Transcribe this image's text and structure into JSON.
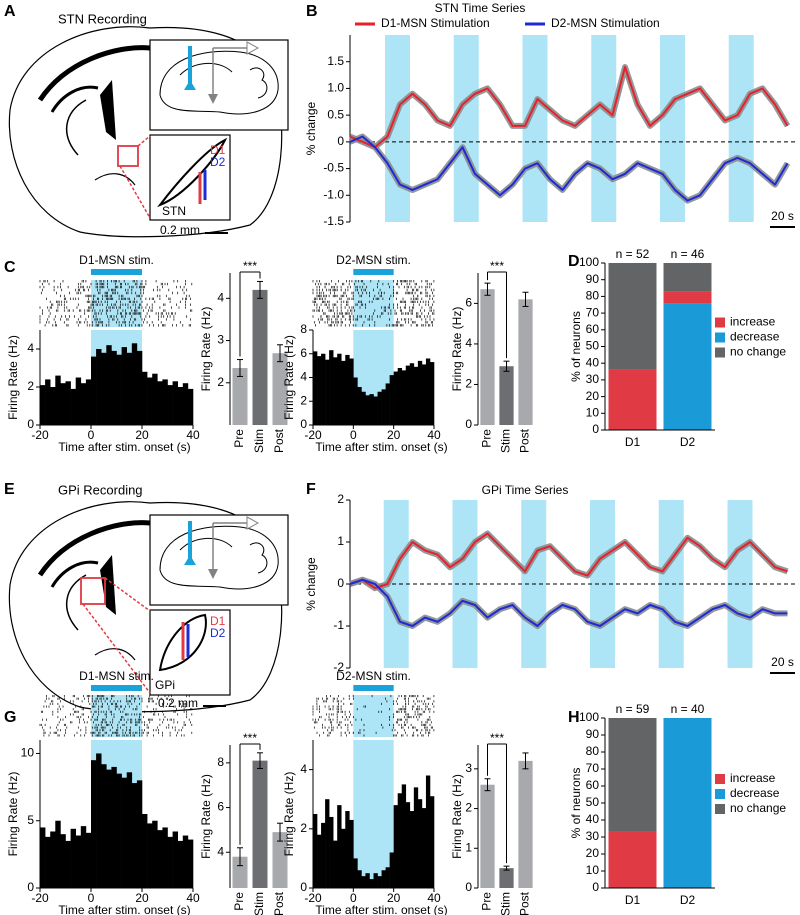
{
  "panel_labels": [
    "A",
    "B",
    "C",
    "D",
    "E",
    "F",
    "G",
    "H"
  ],
  "diagrams": [
    {
      "title": "STN Recording",
      "d1": "D1",
      "d2": "D2",
      "region": "STN",
      "scale": "0.2 mm"
    },
    {
      "title": "GPi Recording",
      "d1": "D1",
      "d2": "D2",
      "region": "GPi",
      "scale": "0.2 mm"
    }
  ],
  "chart_data": [
    {
      "type": "line",
      "title": "STN Time Series",
      "ylabel": "% change",
      "legend": true,
      "zero_line": true,
      "band_color": "#aee5f6",
      "stim_periods": [
        [
          28,
          48
        ],
        [
          83,
          103
        ],
        [
          138,
          158
        ],
        [
          193,
          213
        ],
        [
          248,
          268
        ],
        [
          303,
          323
        ]
      ],
      "x": [
        0,
        10,
        20,
        30,
        40,
        50,
        60,
        70,
        80,
        90,
        100,
        110,
        120,
        130,
        140,
        150,
        160,
        170,
        180,
        190,
        200,
        210,
        220,
        230,
        240,
        250,
        260,
        270,
        280,
        290,
        300,
        310,
        320,
        330,
        340,
        350
      ],
      "series": [
        {
          "name": "D1-MSN Stimulation",
          "color": "#e8202a",
          "values": [
            0.1,
            0.0,
            -0.1,
            0.1,
            0.7,
            0.9,
            0.7,
            0.4,
            0.3,
            0.7,
            0.9,
            1.0,
            0.7,
            0.3,
            0.3,
            0.8,
            0.6,
            0.4,
            0.3,
            0.5,
            0.7,
            0.5,
            1.4,
            0.7,
            0.3,
            0.5,
            0.8,
            0.9,
            1.0,
            0.7,
            0.4,
            0.5,
            0.9,
            1.0,
            0.7,
            0.3
          ]
        },
        {
          "name": "D2-MSN Stimulation",
          "color": "#1c2bd6",
          "values": [
            0.0,
            0.1,
            -0.1,
            -0.4,
            -0.8,
            -0.9,
            -0.8,
            -0.7,
            -0.4,
            -0.1,
            -0.6,
            -0.8,
            -1.0,
            -0.8,
            -0.5,
            -0.4,
            -0.7,
            -0.9,
            -0.6,
            -0.4,
            -0.5,
            -0.7,
            -0.6,
            -0.4,
            -0.5,
            -0.6,
            -0.9,
            -1.1,
            -1.0,
            -0.7,
            -0.4,
            -0.3,
            -0.4,
            -0.6,
            -0.8,
            -0.4
          ]
        }
      ],
      "xlim": [
        0,
        356
      ],
      "ylim": [
        -1.5,
        2
      ],
      "yticks": [
        -1.5,
        {
          "value": -1,
          "label": "-1.0"
        },
        -0.5,
        0,
        0.5,
        {
          "value": 1,
          "label": "1.0"
        },
        1.5
      ],
      "scale_bar": {
        "value": 20,
        "label": "20 s"
      }
    },
    {
      "type": "histogram",
      "title": "D1-MSN stim.",
      "xlabel": "Time after stim. onset (s)",
      "ylabel": "Firing Rate (Hz)",
      "color": "#000000",
      "stim_color": "#1aa3db",
      "shade_color": "#aee5f6",
      "stim_window": [
        0,
        20
      ],
      "bins": [
        -20,
        -18,
        -16,
        -14,
        -12,
        -10,
        -8,
        -6,
        -4,
        -2,
        0,
        2,
        4,
        6,
        8,
        10,
        12,
        14,
        16,
        18,
        20,
        22,
        24,
        26,
        28,
        30,
        32,
        34,
        36,
        38,
        40
      ],
      "values": [
        2.1,
        2.4,
        2.0,
        2.6,
        2.2,
        2.3,
        1.9,
        2.5,
        2.2,
        2.4,
        3.6,
        4.0,
        3.8,
        4.2,
        3.9,
        3.7,
        4.1,
        3.8,
        4.3,
        3.9,
        2.8,
        2.5,
        2.7,
        2.3,
        2.4,
        2.1,
        2.3,
        2.0,
        2.2,
        1.9
      ],
      "xlim": [
        -20,
        40
      ],
      "xticks": [
        -20,
        0,
        20,
        40
      ],
      "ylim": [
        0,
        5
      ],
      "yticks": [
        0,
        2,
        4
      ]
    },
    {
      "type": "bar",
      "ylabel": "Firing Rate (Hz)",
      "categories": [
        "Pre",
        "Stim",
        "Post"
      ],
      "values": [
        2.35,
        4.2,
        2.7
      ],
      "errors": [
        0.2,
        0.2,
        0.2
      ],
      "colors": [
        "#a7a9ac",
        "#6d6e71",
        "#a7a9ac"
      ],
      "ylim": [
        1,
        4.6
      ],
      "yticks": [
        2,
        3,
        4
      ],
      "annotation": "***"
    },
    {
      "type": "histogram",
      "title": "D2-MSN stim.",
      "xlabel": "Time after stim. onset (s)",
      "ylabel": "Firing Rate (Hz)",
      "color": "#000000",
      "stim_color": "#1aa3db",
      "shade_color": "#aee5f6",
      "stim_window": [
        0,
        20
      ],
      "bins": [
        -20,
        -18,
        -16,
        -14,
        -12,
        -10,
        -8,
        -6,
        -4,
        -2,
        0,
        2,
        4,
        6,
        8,
        10,
        12,
        14,
        16,
        18,
        20,
        22,
        24,
        26,
        28,
        30,
        32,
        34,
        36,
        38,
        40
      ],
      "values": [
        6.2,
        5.8,
        6.0,
        5.5,
        6.3,
        5.7,
        6.0,
        5.4,
        5.9,
        5.6,
        4.0,
        3.2,
        2.8,
        2.5,
        2.6,
        2.4,
        2.8,
        3.0,
        3.5,
        4.2,
        4.5,
        4.8,
        4.6,
        5.0,
        5.2,
        4.9,
        5.4,
        5.1,
        5.6,
        5.3
      ],
      "xlim": [
        -20,
        40
      ],
      "xticks": [
        -20,
        0,
        20,
        40
      ],
      "ylim": [
        0,
        8
      ],
      "yticks": [
        0,
        2,
        4,
        6,
        8
      ]
    },
    {
      "type": "bar",
      "ylabel": "Firing Rate (Hz)",
      "categories": [
        "Pre",
        "Stim",
        "Post"
      ],
      "values": [
        6.7,
        2.9,
        6.2
      ],
      "errors": [
        0.3,
        0.25,
        0.35
      ],
      "colors": [
        "#a7a9ac",
        "#6d6e71",
        "#a7a9ac"
      ],
      "ylim": [
        0,
        7.5
      ],
      "yticks": [
        0,
        2,
        4,
        6
      ],
      "annotation": "***"
    },
    {
      "type": "stacked_bar",
      "ylabel": "% of neurons",
      "categories": [
        "D1",
        "D2"
      ],
      "annotations": [
        "n = 52",
        "n = 46"
      ],
      "series": [
        {
          "name": "increase",
          "color": "#e03a44",
          "values": [
            36,
            7
          ]
        },
        {
          "name": "decrease",
          "color": "#1a9ad7",
          "values": [
            0,
            76
          ]
        },
        {
          "name": "no change",
          "color": "#636466",
          "values": [
            64,
            17
          ]
        }
      ],
      "ylim": [
        0,
        100
      ],
      "yticks": [
        0,
        10,
        20,
        30,
        40,
        50,
        60,
        70,
        80,
        90,
        100
      ]
    },
    {
      "type": "line",
      "title": "GPi Time Series",
      "ylabel": "% change",
      "legend": false,
      "zero_line": true,
      "band_color": "#aee5f6",
      "stim_periods": [
        [
          27,
          47
        ],
        [
          82,
          102
        ],
        [
          137,
          157
        ],
        [
          192,
          212
        ],
        [
          247,
          267
        ],
        [
          302,
          322
        ]
      ],
      "x": [
        0,
        10,
        20,
        30,
        40,
        50,
        60,
        70,
        80,
        90,
        100,
        110,
        120,
        130,
        140,
        150,
        160,
        170,
        180,
        190,
        200,
        210,
        220,
        230,
        240,
        250,
        260,
        270,
        280,
        290,
        300,
        310,
        320,
        330,
        340,
        350
      ],
      "series": [
        {
          "color": "#e8202a",
          "values": [
            0.0,
            0.1,
            -0.1,
            0.0,
            0.6,
            1.0,
            0.8,
            0.7,
            0.4,
            0.6,
            1.0,
            1.2,
            0.9,
            0.6,
            0.3,
            0.8,
            0.9,
            0.6,
            0.3,
            0.2,
            0.6,
            0.8,
            1.0,
            0.7,
            0.4,
            0.3,
            0.7,
            1.1,
            0.9,
            0.6,
            0.4,
            0.8,
            1.0,
            0.7,
            0.4,
            0.3
          ]
        },
        {
          "color": "#1c2bd6",
          "values": [
            0.0,
            0.1,
            0.0,
            -0.3,
            -0.9,
            -1.0,
            -0.8,
            -0.9,
            -0.7,
            -0.4,
            -0.5,
            -0.8,
            -0.6,
            -0.5,
            -0.8,
            -1.0,
            -0.7,
            -0.5,
            -0.6,
            -0.9,
            -1.0,
            -0.8,
            -0.6,
            -0.7,
            -0.5,
            -0.6,
            -0.9,
            -1.0,
            -0.8,
            -0.6,
            -0.5,
            -0.7,
            -0.8,
            -0.6,
            -0.7,
            -0.7
          ]
        }
      ],
      "xlim": [
        0,
        356
      ],
      "ylim": [
        -2,
        2
      ],
      "yticks": [
        -2,
        -1,
        0,
        1,
        2
      ],
      "scale_bar": {
        "value": 20,
        "label": "20 s"
      }
    },
    {
      "type": "histogram",
      "title": "D1-MSN stim.",
      "xlabel": "Time after stim. onset (s)",
      "ylabel": "Firing Rate (Hz)",
      "color": "#000000",
      "stim_color": "#1aa3db",
      "shade_color": "#aee5f6",
      "stim_window": [
        0,
        20
      ],
      "bins": [
        -20,
        -18,
        -16,
        -14,
        -12,
        -10,
        -8,
        -6,
        -4,
        -2,
        0,
        2,
        4,
        6,
        8,
        10,
        12,
        14,
        16,
        18,
        20,
        22,
        24,
        26,
        28,
        30,
        32,
        34,
        36,
        38,
        40
      ],
      "values": [
        4.5,
        3.8,
        4.2,
        5.0,
        4.0,
        3.5,
        4.4,
        3.9,
        4.6,
        4.1,
        9.5,
        10.0,
        9.2,
        8.8,
        9.0,
        8.5,
        8.2,
        8.6,
        7.8,
        8.0,
        5.5,
        4.8,
        5.0,
        4.3,
        4.5,
        3.8,
        4.2,
        3.5,
        3.9,
        3.6
      ],
      "xlim": [
        -20,
        40
      ],
      "xticks": [
        -20,
        0,
        20,
        40
      ],
      "ylim": [
        0,
        11
      ],
      "yticks": [
        0,
        5,
        10
      ]
    },
    {
      "type": "bar",
      "ylabel": "Firing Rate (Hz)",
      "categories": [
        "Pre",
        "Stim",
        "Post"
      ],
      "values": [
        3.8,
        8.1,
        4.9
      ],
      "errors": [
        0.4,
        0.35,
        0.4
      ],
      "colors": [
        "#a7a9ac",
        "#6d6e71",
        "#a7a9ac"
      ],
      "ylim": [
        2.4,
        8.8
      ],
      "yticks": [
        4,
        6,
        8
      ],
      "annotation": "***"
    },
    {
      "type": "histogram",
      "title": "D2-MSN stim.",
      "xlabel": "Time after stim. onset (s)",
      "ylabel": "Firing Rate (Hz)",
      "color": "#000000",
      "stim_color": "#1aa3db",
      "shade_color": "#aee5f6",
      "stim_window": [
        0,
        20
      ],
      "bins": [
        -20,
        -18,
        -16,
        -14,
        -12,
        -10,
        -8,
        -6,
        -4,
        -2,
        0,
        2,
        4,
        6,
        8,
        10,
        12,
        14,
        16,
        18,
        20,
        22,
        24,
        26,
        28,
        30,
        32,
        34,
        36,
        38,
        40
      ],
      "values": [
        2.5,
        1.8,
        2.2,
        3.0,
        2.4,
        1.6,
        2.8,
        2.0,
        2.6,
        2.3,
        1.0,
        0.6,
        0.4,
        0.5,
        0.3,
        0.5,
        0.4,
        0.6,
        0.7,
        1.2,
        2.8,
        3.2,
        3.5,
        2.9,
        2.6,
        3.4,
        3.0,
        2.7,
        3.8,
        3.1
      ],
      "xlim": [
        -20,
        40
      ],
      "xticks": [
        -20,
        0,
        20,
        40
      ],
      "ylim": [
        0,
        5
      ],
      "yticks": [
        0,
        2,
        4
      ]
    },
    {
      "type": "bar",
      "ylabel": "Firing Rate (Hz)",
      "categories": [
        "Pre",
        "Stim",
        "Post"
      ],
      "values": [
        2.6,
        0.5,
        3.2
      ],
      "errors": [
        0.15,
        0.05,
        0.2
      ],
      "colors": [
        "#a7a9ac",
        "#6d6e71",
        "#a7a9ac"
      ],
      "ylim": [
        0,
        3.6
      ],
      "yticks": [
        0,
        1,
        2,
        3
      ],
      "annotation": "***"
    },
    {
      "type": "stacked_bar",
      "ylabel": "% of neurons",
      "categories": [
        "D1",
        "D2"
      ],
      "annotations": [
        "n = 59",
        "n = 40"
      ],
      "series": [
        {
          "name": "increase",
          "color": "#e03a44",
          "values": [
            33,
            0
          ]
        },
        {
          "name": "decrease",
          "color": "#1a9ad7",
          "values": [
            0,
            100
          ]
        },
        {
          "name": "no change",
          "color": "#636466",
          "values": [
            67,
            0
          ]
        }
      ],
      "ylim": [
        0,
        100
      ],
      "yticks": [
        0,
        10,
        20,
        30,
        40,
        50,
        60,
        70,
        80,
        90,
        100
      ]
    }
  ]
}
